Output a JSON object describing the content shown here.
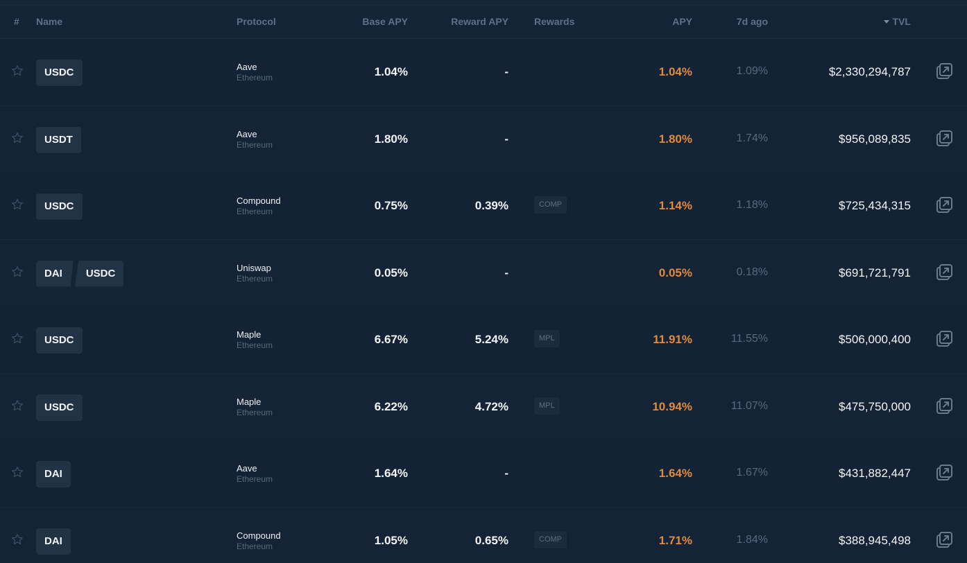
{
  "header": {
    "rank": "#",
    "name": "Name",
    "protocol": "Protocol",
    "base_apy": "Base APY",
    "reward_apy": "Reward APY",
    "rewards": "Rewards",
    "apy": "APY",
    "seven_d_ago": "7d ago",
    "tvl": "TVL",
    "sort_icon": "caret-down-icon"
  },
  "colors": {
    "apy": "#e08a3e",
    "background": "#132133"
  },
  "rows": [
    {
      "tokens": [
        "USDC"
      ],
      "protocol": "Aave",
      "chain": "Ethereum",
      "base_apy": "1.04%",
      "reward_apy": "-",
      "rewards": "",
      "apy": "1.04%",
      "seven_d_ago": "1.09%",
      "tvl": "$2,330,294,787"
    },
    {
      "tokens": [
        "USDT"
      ],
      "protocol": "Aave",
      "chain": "Ethereum",
      "base_apy": "1.80%",
      "reward_apy": "-",
      "rewards": "",
      "apy": "1.80%",
      "seven_d_ago": "1.74%",
      "tvl": "$956,089,835"
    },
    {
      "tokens": [
        "USDC"
      ],
      "protocol": "Compound",
      "chain": "Ethereum",
      "base_apy": "0.75%",
      "reward_apy": "0.39%",
      "rewards": "COMP",
      "apy": "1.14%",
      "seven_d_ago": "1.18%",
      "tvl": "$725,434,315"
    },
    {
      "tokens": [
        "DAI",
        "USDC"
      ],
      "protocol": "Uniswap",
      "chain": "Ethereum",
      "base_apy": "0.05%",
      "reward_apy": "-",
      "rewards": "",
      "apy": "0.05%",
      "seven_d_ago": "0.18%",
      "tvl": "$691,721,791"
    },
    {
      "tokens": [
        "USDC"
      ],
      "protocol": "Maple",
      "chain": "Ethereum",
      "base_apy": "6.67%",
      "reward_apy": "5.24%",
      "rewards": "MPL",
      "apy": "11.91%",
      "seven_d_ago": "11.55%",
      "tvl": "$506,000,400"
    },
    {
      "tokens": [
        "USDC"
      ],
      "protocol": "Maple",
      "chain": "Ethereum",
      "base_apy": "6.22%",
      "reward_apy": "4.72%",
      "rewards": "MPL",
      "apy": "10.94%",
      "seven_d_ago": "11.07%",
      "tvl": "$475,750,000"
    },
    {
      "tokens": [
        "DAI"
      ],
      "protocol": "Aave",
      "chain": "Ethereum",
      "base_apy": "1.64%",
      "reward_apy": "-",
      "rewards": "",
      "apy": "1.64%",
      "seven_d_ago": "1.67%",
      "tvl": "$431,882,447"
    },
    {
      "tokens": [
        "DAI"
      ],
      "protocol": "Compound",
      "chain": "Ethereum",
      "base_apy": "1.05%",
      "reward_apy": "0.65%",
      "rewards": "COMP",
      "apy": "1.71%",
      "seven_d_ago": "1.84%",
      "tvl": "$388,945,498"
    }
  ],
  "icons": {
    "favorite": "star-icon",
    "open": "external-link-icon"
  }
}
